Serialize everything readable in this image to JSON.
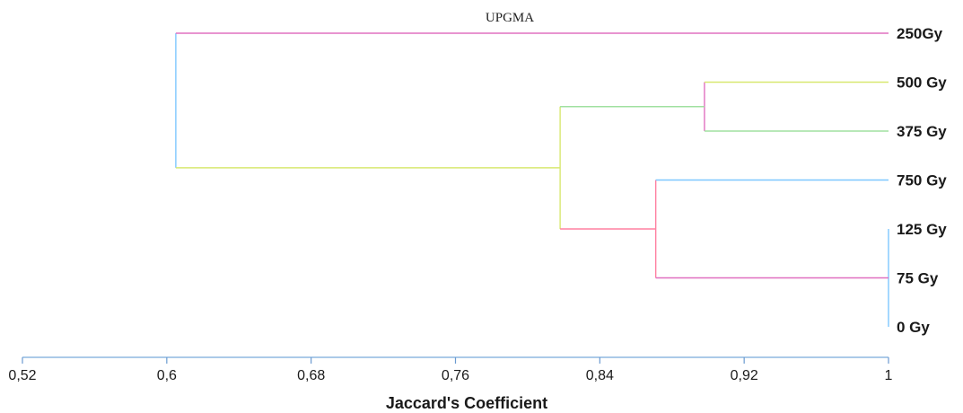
{
  "chart_data": {
    "type": "dendrogram",
    "title": "UPGMA",
    "xlabel": "Jaccard's Coefficient",
    "xlim": [
      0.52,
      1
    ],
    "ticks": [
      0.52,
      0.6,
      0.68,
      0.76,
      0.84,
      0.92,
      1
    ],
    "tick_labels": [
      "0,52",
      "0,6",
      "0,68",
      "0,76",
      "0,84",
      "0,92",
      "1"
    ],
    "leaves": [
      "250Gy",
      "500 Gy",
      "375 Gy",
      "750 Gy",
      "125 Gy",
      "75  Gy",
      "0 Gy"
    ],
    "merges": [
      {
        "members": [
          "125 Gy",
          "75  Gy",
          "0 Gy"
        ],
        "similarity": 1.0
      },
      {
        "members": [
          "500 Gy",
          "375 Gy"
        ],
        "similarity": 0.898
      },
      {
        "members": [
          "750 Gy",
          "125 Gy",
          "75  Gy",
          "0 Gy"
        ],
        "similarity": 0.871
      },
      {
        "members": [
          "500 Gy",
          "375 Gy",
          "750 Gy",
          "125 Gy",
          "75  Gy",
          "0 Gy"
        ],
        "similarity": 0.818
      },
      {
        "members": [
          "250Gy",
          "500 Gy",
          "375 Gy",
          "750 Gy",
          "125 Gy",
          "75  Gy",
          "0 Gy"
        ],
        "similarity": 0.605
      }
    ],
    "colors": [
      "#7ec8ff",
      "#e070c0",
      "#d8e870",
      "#a0e0a0",
      "#ff80a0"
    ],
    "grid": false
  }
}
